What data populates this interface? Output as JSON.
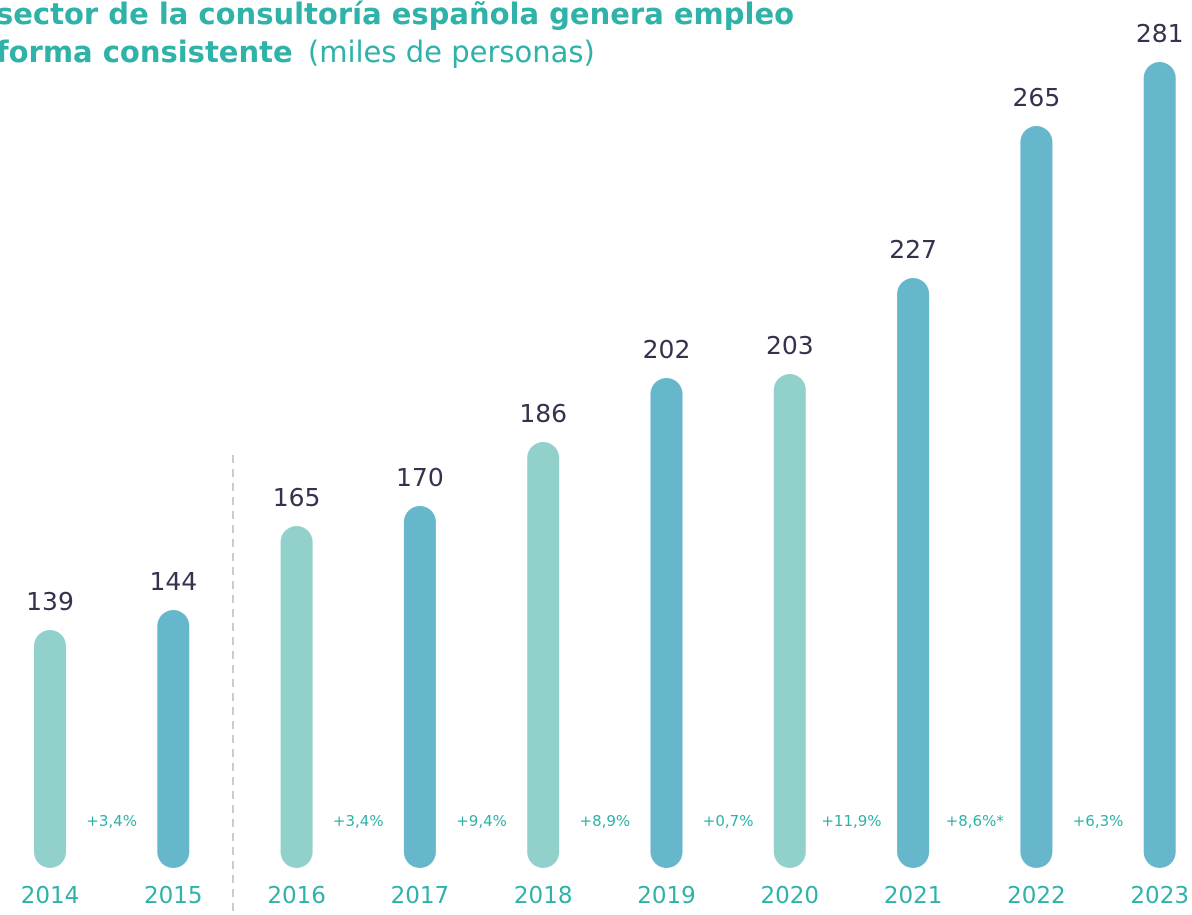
{
  "chart_data": {
    "type": "bar",
    "title": "sector de la consultoría española genera empleo",
    "title_line2": "forma consistente",
    "subtitle": "(miles de personas)",
    "categories": [
      "2014",
      "2015",
      "2016",
      "2017",
      "2018",
      "2019",
      "2020",
      "2021",
      "2022",
      "2023"
    ],
    "values": [
      139,
      144,
      165,
      170,
      186,
      202,
      203,
      227,
      265,
      281
    ],
    "colors": [
      "#92d0cb",
      "#66b6cc",
      "#92d0cb",
      "#66b6cc",
      "#92d0cb",
      "#66b6cc",
      "#92d0cb",
      "#66b6cc",
      "#66b6cc",
      "#66b6cc"
    ],
    "growth": [
      "+3,4%",
      null,
      "+3,4%",
      "+9,4%",
      "+8,9%",
      "+0,7%",
      "+11,9%",
      "+8,6%*",
      "+6,3%"
    ]
  }
}
